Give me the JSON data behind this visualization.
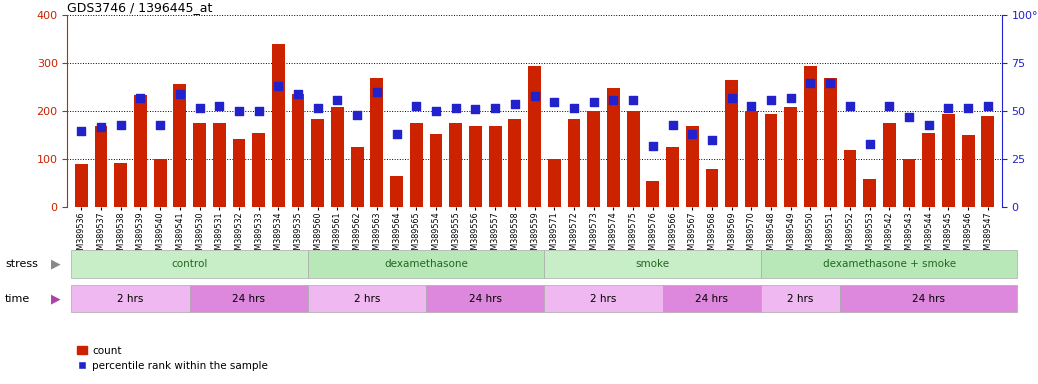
{
  "title": "GDS3746 / 1396445_at",
  "samples": [
    "GSM389536",
    "GSM389537",
    "GSM389538",
    "GSM389539",
    "GSM389540",
    "GSM389541",
    "GSM389530",
    "GSM389531",
    "GSM389532",
    "GSM389533",
    "GSM389534",
    "GSM389535",
    "GSM389560",
    "GSM389561",
    "GSM389562",
    "GSM389563",
    "GSM389564",
    "GSM389565",
    "GSM389554",
    "GSM389555",
    "GSM389556",
    "GSM389557",
    "GSM389558",
    "GSM389559",
    "GSM389571",
    "GSM389572",
    "GSM389573",
    "GSM389574",
    "GSM389575",
    "GSM389576",
    "GSM389566",
    "GSM389567",
    "GSM389568",
    "GSM389569",
    "GSM389570",
    "GSM389548",
    "GSM389549",
    "GSM389550",
    "GSM389551",
    "GSM389552",
    "GSM389553",
    "GSM389542",
    "GSM389543",
    "GSM389544",
    "GSM389545",
    "GSM389546",
    "GSM389547"
  ],
  "counts": [
    90,
    170,
    93,
    235,
    100,
    256,
    175,
    175,
    143,
    155,
    340,
    237,
    185,
    210,
    125,
    270,
    65,
    175,
    152,
    175,
    170,
    170,
    185,
    295,
    100,
    185,
    200,
    248,
    200,
    55,
    125,
    170,
    80,
    265,
    200,
    195,
    210,
    295,
    270,
    120,
    60,
    175,
    100,
    155,
    195,
    150,
    190
  ],
  "percentiles": [
    40,
    42,
    43,
    57,
    43,
    59,
    52,
    53,
    50,
    50,
    63,
    59,
    52,
    56,
    48,
    60,
    38,
    53,
    50,
    52,
    51,
    52,
    54,
    58,
    55,
    52,
    55,
    56,
    56,
    32,
    43,
    38,
    35,
    57,
    53,
    56,
    57,
    65,
    65,
    53,
    33,
    53,
    47,
    43,
    52,
    52,
    53
  ],
  "count_color": "#cc2200",
  "percentile_color": "#2222cc",
  "ylim_left": [
    0,
    400
  ],
  "ylim_right": [
    0,
    100
  ],
  "yticks_left": [
    0,
    100,
    200,
    300,
    400
  ],
  "yticks_right": [
    0,
    25,
    50,
    75,
    100
  ],
  "stress_groups": [
    {
      "label": "control",
      "start": 0,
      "end": 12,
      "color": "#c8eec8"
    },
    {
      "label": "dexamethasone",
      "start": 12,
      "end": 24,
      "color": "#b8e8b8"
    },
    {
      "label": "smoke",
      "start": 24,
      "end": 35,
      "color": "#c8eec8"
    },
    {
      "label": "dexamethasone + smoke",
      "start": 35,
      "end": 48,
      "color": "#b8e8b8"
    }
  ],
  "time_groups": [
    {
      "label": "2 hrs",
      "start": 0,
      "end": 6,
      "color": "#f0b8f0"
    },
    {
      "label": "24 hrs",
      "start": 6,
      "end": 12,
      "color": "#dd88dd"
    },
    {
      "label": "2 hrs",
      "start": 12,
      "end": 18,
      "color": "#f0b8f0"
    },
    {
      "label": "24 hrs",
      "start": 18,
      "end": 24,
      "color": "#dd88dd"
    },
    {
      "label": "2 hrs",
      "start": 24,
      "end": 30,
      "color": "#f0b8f0"
    },
    {
      "label": "24 hrs",
      "start": 30,
      "end": 35,
      "color": "#dd88dd"
    },
    {
      "label": "2 hrs",
      "start": 35,
      "end": 39,
      "color": "#f0b8f0"
    },
    {
      "label": "24 hrs",
      "start": 39,
      "end": 48,
      "color": "#dd88dd"
    }
  ],
  "stress_label_color": "#226622",
  "bar_width": 0.65,
  "marker_size": 36,
  "background_color": "#ffffff"
}
